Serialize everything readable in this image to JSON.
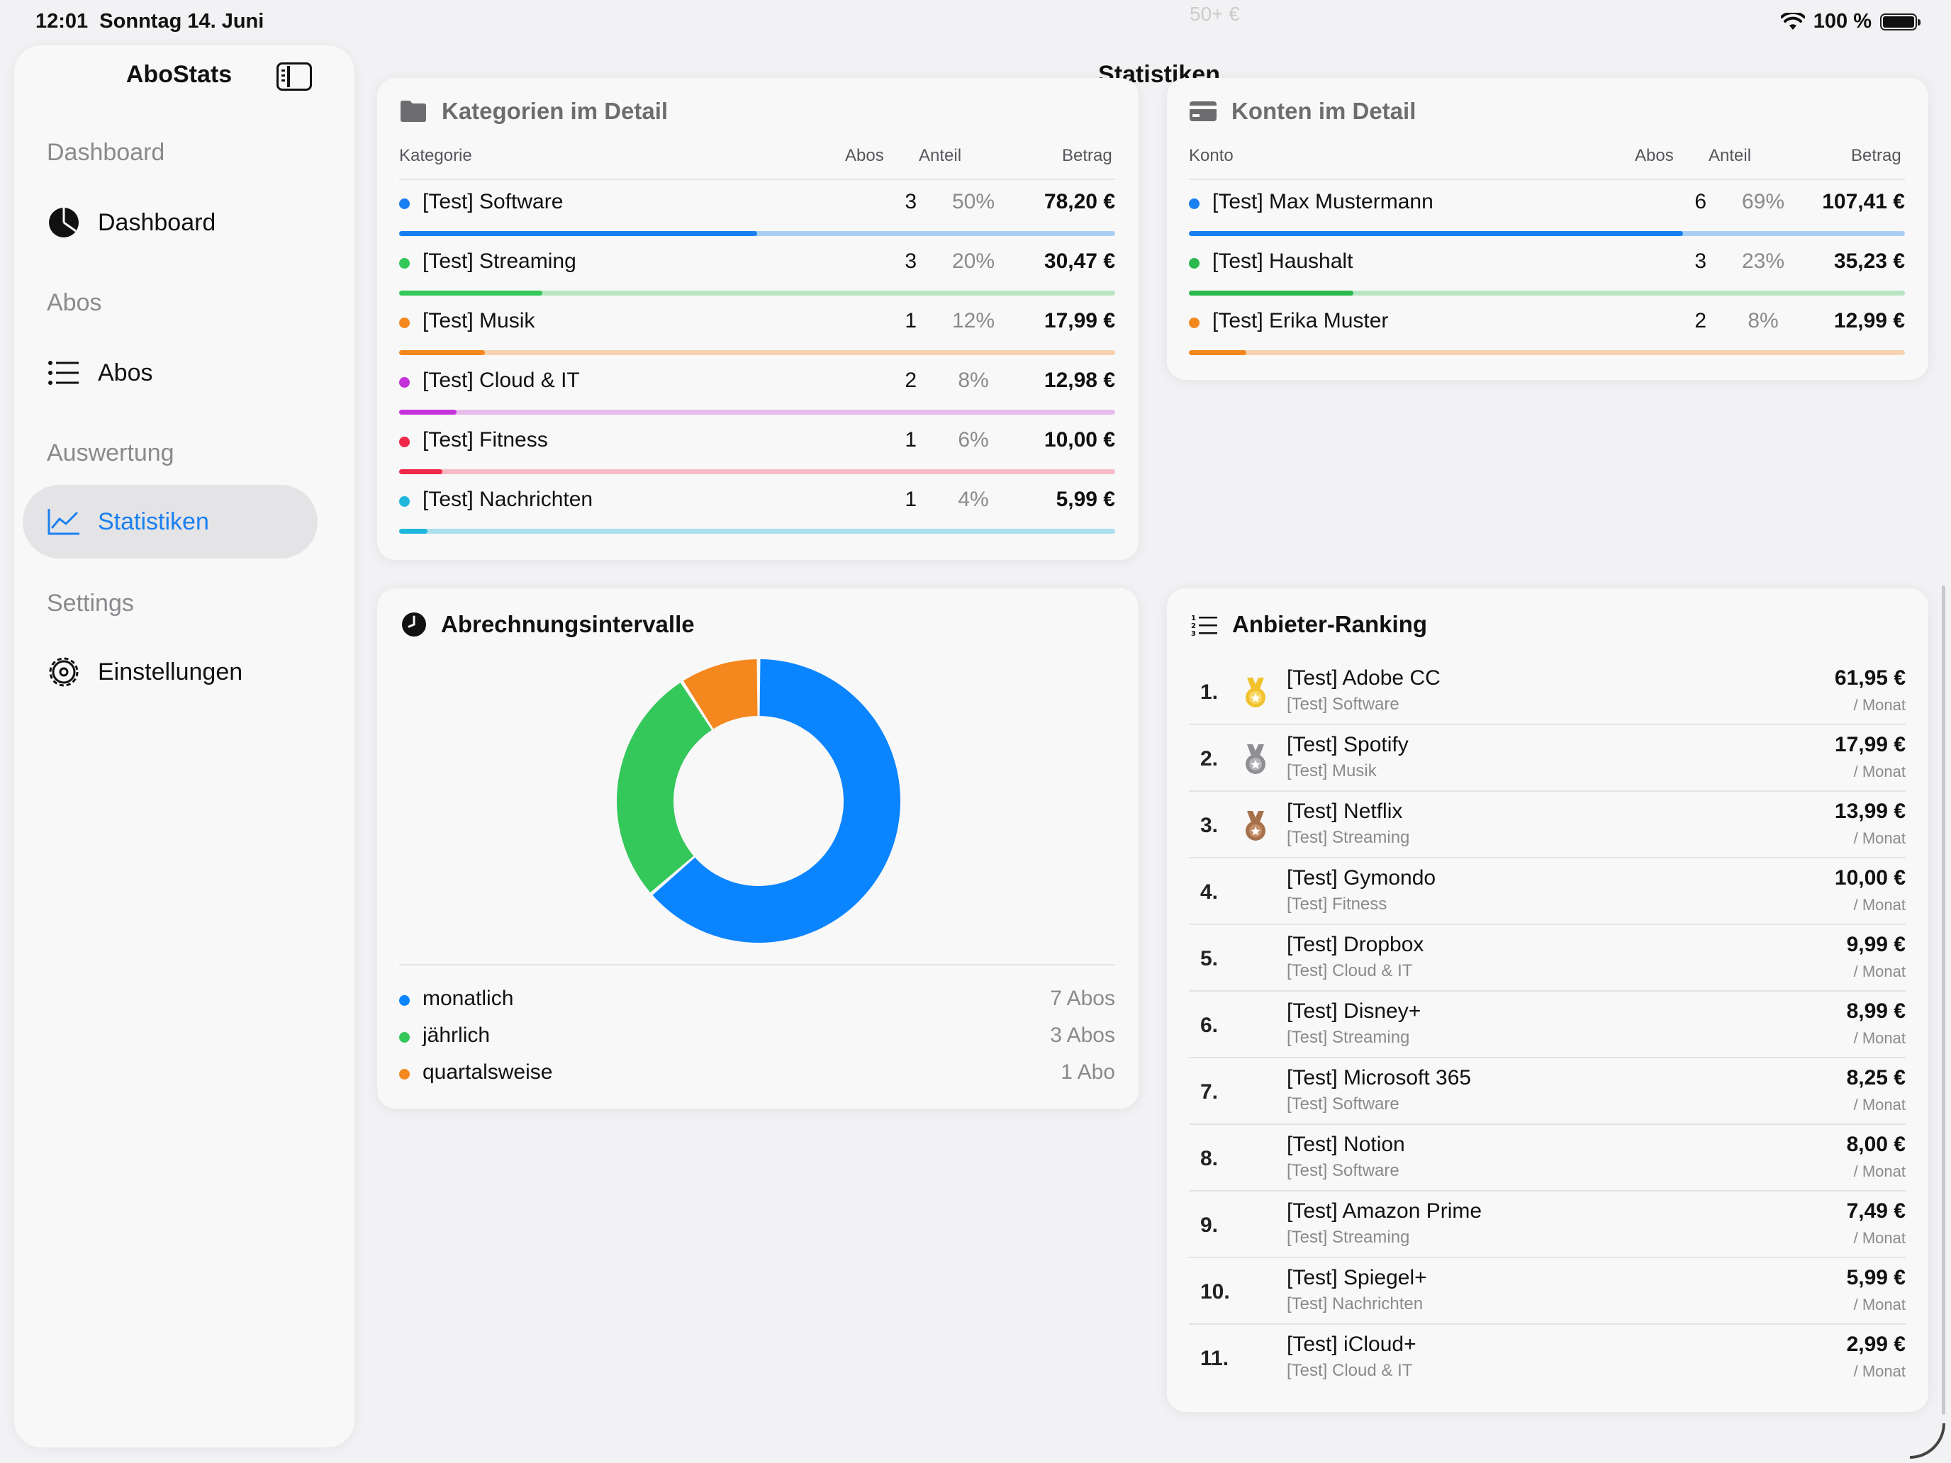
{
  "status": {
    "time": "12:01",
    "date": "Sonntag 14. Juni",
    "battery": "100 %",
    "ghost": "50+ €"
  },
  "sidebar": {
    "title": "AboStats",
    "sections": [
      {
        "header": "Dashboard",
        "item": "Dashboard",
        "icon": "pie-icon"
      },
      {
        "header": "Abos",
        "item": "Abos",
        "icon": "list-icon"
      },
      {
        "header": "Auswertung",
        "item": "Statistiken",
        "icon": "chart-line-icon",
        "active": true
      },
      {
        "header": "Settings",
        "item": "Einstellungen",
        "icon": "gear-icon"
      }
    ]
  },
  "page_title": "Statistiken",
  "categories": {
    "title": "Kategorien im Detail",
    "headers": {
      "name": "Kategorie",
      "abos": "Abos",
      "share": "Anteil",
      "amount": "Betrag"
    },
    "rows": [
      {
        "name": "[Test] Software",
        "abos": "3",
        "share": "50%",
        "amount": "78,20 €",
        "fraction": 0.5,
        "color": "#1a7ff0",
        "track": "#a9cff5"
      },
      {
        "name": "[Test] Streaming",
        "abos": "3",
        "share": "20%",
        "amount": "30,47 €",
        "fraction": 0.2,
        "color": "#34c759",
        "track": "#b8e6c2"
      },
      {
        "name": "[Test] Musik",
        "abos": "1",
        "share": "12%",
        "amount": "17,99 €",
        "fraction": 0.12,
        "color": "#f4871e",
        "track": "#f6d2b0"
      },
      {
        "name": "[Test] Cloud & IT",
        "abos": "2",
        "share": "8%",
        "amount": "12,98 €",
        "fraction": 0.08,
        "color": "#c433d9",
        "track": "#e8bdee"
      },
      {
        "name": "[Test] Fitness",
        "abos": "1",
        "share": "6%",
        "amount": "10,00 €",
        "fraction": 0.06,
        "color": "#f0284a",
        "track": "#f5bcc6"
      },
      {
        "name": "[Test] Nachrichten",
        "abos": "1",
        "share": "4%",
        "amount": "5,99 €",
        "fraction": 0.04,
        "color": "#1fb8dc",
        "track": "#ade0ee"
      }
    ]
  },
  "accounts": {
    "title": "Konten im Detail",
    "headers": {
      "name": "Konto",
      "abos": "Abos",
      "share": "Anteil",
      "amount": "Betrag"
    },
    "rows": [
      {
        "name": "[Test] Max Mustermann",
        "abos": "6",
        "share": "69%",
        "amount": "107,41 €",
        "fraction": 0.69,
        "color": "#1a7ff0",
        "track": "#a9cff5"
      },
      {
        "name": "[Test] Haushalt",
        "abos": "3",
        "share": "23%",
        "amount": "35,23 €",
        "fraction": 0.23,
        "color": "#2db84e",
        "track": "#b8e6c2"
      },
      {
        "name": "[Test] Erika Muster",
        "abos": "2",
        "share": "8%",
        "amount": "12,99 €",
        "fraction": 0.08,
        "color": "#f4871e",
        "track": "#f6d2b0"
      }
    ]
  },
  "chart_data": {
    "type": "pie",
    "categories": [
      "monatlich",
      "jährlich",
      "quartalsweise"
    ],
    "values": [
      7,
      3,
      1
    ],
    "title": "Abrechnungsintervalle",
    "legend_counts": [
      "7 Abos",
      "3 Abos",
      "1 Abo"
    ],
    "colors": [
      "#0a84ff",
      "#34c759",
      "#f4871e"
    ]
  },
  "ranking": {
    "title": "Anbieter-Ranking",
    "per_label": "/ Monat",
    "items": [
      {
        "rank": "1.",
        "name": "[Test] Adobe CC",
        "category": "[Test] Software",
        "price": "61,95 €",
        "medal": "gold"
      },
      {
        "rank": "2.",
        "name": "[Test] Spotify",
        "category": "[Test] Musik",
        "price": "17,99 €",
        "medal": "silver"
      },
      {
        "rank": "3.",
        "name": "[Test] Netflix",
        "category": "[Test] Streaming",
        "price": "13,99 €",
        "medal": "bronze"
      },
      {
        "rank": "4.",
        "name": "[Test] Gymondo",
        "category": "[Test] Fitness",
        "price": "10,00 €"
      },
      {
        "rank": "5.",
        "name": "[Test] Dropbox",
        "category": "[Test] Cloud & IT",
        "price": "9,99 €"
      },
      {
        "rank": "6.",
        "name": "[Test] Disney+",
        "category": "[Test] Streaming",
        "price": "8,99 €"
      },
      {
        "rank": "7.",
        "name": "[Test] Microsoft 365",
        "category": "[Test] Software",
        "price": "8,25 €"
      },
      {
        "rank": "8.",
        "name": "[Test] Notion",
        "category": "[Test] Software",
        "price": "8,00 €"
      },
      {
        "rank": "9.",
        "name": "[Test] Amazon Prime",
        "category": "[Test] Streaming",
        "price": "7,49 €"
      },
      {
        "rank": "10.",
        "name": "[Test] Spiegel+",
        "category": "[Test] Nachrichten",
        "price": "5,99 €"
      },
      {
        "rank": "11.",
        "name": "[Test] iCloud+",
        "category": "[Test] Cloud & IT",
        "price": "2,99 €"
      }
    ]
  }
}
